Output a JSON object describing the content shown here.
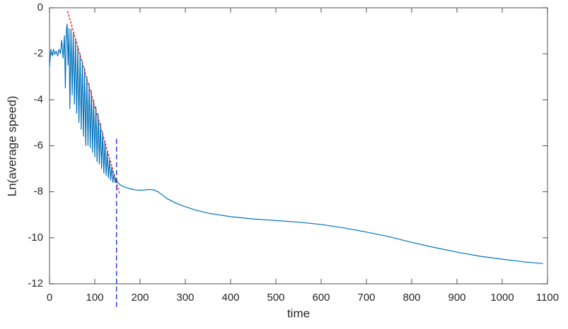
{
  "chart_data": {
    "type": "line",
    "xlabel": "time",
    "ylabel": "Ln(average speed)",
    "xlim": [
      0,
      1100
    ],
    "ylim": [
      -12,
      0
    ],
    "xticks": [
      0,
      100,
      200,
      300,
      400,
      500,
      600,
      700,
      800,
      900,
      1000,
      1100
    ],
    "yticks": [
      -12,
      -10,
      -8,
      -6,
      -4,
      -2,
      0
    ],
    "series": [
      {
        "color": "#0072bd",
        "x": [
          0,
          3,
          6,
          9,
          12,
          15,
          18,
          21,
          24,
          27,
          30,
          33,
          35,
          37,
          39,
          41,
          43,
          45,
          47.5,
          50,
          52.5,
          55,
          57.5,
          60,
          62.5,
          65,
          67.5,
          70,
          72.5,
          75,
          77.5,
          80,
          82.5,
          85,
          87.5,
          90,
          92.5,
          95,
          97.5,
          100,
          102.5,
          105,
          107.5,
          110,
          112.5,
          115,
          117.5,
          120,
          122.5,
          125,
          127.5,
          130,
          132.5,
          135,
          137.5,
          140,
          142.5,
          145,
          147.5,
          150,
          160,
          170,
          180,
          190,
          200,
          210,
          220,
          230,
          240,
          250,
          260,
          270,
          280,
          300,
          320,
          350,
          400,
          450,
          500,
          550,
          600,
          650,
          700,
          750,
          800,
          850,
          900,
          950,
          1000,
          1050,
          1090
        ],
        "values": [
          -2.6,
          -1.8,
          -2.1,
          -1.8,
          -2.0,
          -1.9,
          -2.1,
          -1.8,
          -2.0,
          -1.4,
          -2.2,
          -1.2,
          -3.5,
          -1.0,
          -0.7,
          -2.5,
          -0.9,
          -4.4,
          -0.9,
          -3.8,
          -1.1,
          -4.2,
          -1.4,
          -4.6,
          -1.7,
          -5.0,
          -2.0,
          -5.3,
          -2.3,
          -5.6,
          -2.6,
          -6.0,
          -3.0,
          -6.0,
          -3.3,
          -6.1,
          -3.6,
          -6.3,
          -4.0,
          -6.5,
          -4.3,
          -6.7,
          -4.6,
          -6.8,
          -5.0,
          -7.0,
          -5.4,
          -7.2,
          -5.8,
          -7.3,
          -6.2,
          -7.4,
          -6.6,
          -7.5,
          -6.9,
          -7.6,
          -7.2,
          -7.6,
          -7.4,
          -7.6,
          -7.75,
          -7.82,
          -7.88,
          -7.92,
          -7.93,
          -7.92,
          -7.9,
          -7.92,
          -8.0,
          -8.15,
          -8.3,
          -8.4,
          -8.5,
          -8.65,
          -8.78,
          -8.93,
          -9.08,
          -9.18,
          -9.25,
          -9.32,
          -9.42,
          -9.57,
          -9.75,
          -9.95,
          -10.2,
          -10.42,
          -10.62,
          -10.8,
          -10.93,
          -11.05,
          -11.12
        ]
      }
    ],
    "reference_lines": [
      {
        "color": "#e8262a",
        "dash": "3,2",
        "x": [
          40,
          155
        ],
        "values": [
          -0.15,
          -8.1
        ]
      },
      {
        "color": "#2a3fd6",
        "dash": "7,4",
        "x": [
          148,
          148
        ],
        "values": [
          -5.7,
          -13.1
        ]
      }
    ]
  }
}
